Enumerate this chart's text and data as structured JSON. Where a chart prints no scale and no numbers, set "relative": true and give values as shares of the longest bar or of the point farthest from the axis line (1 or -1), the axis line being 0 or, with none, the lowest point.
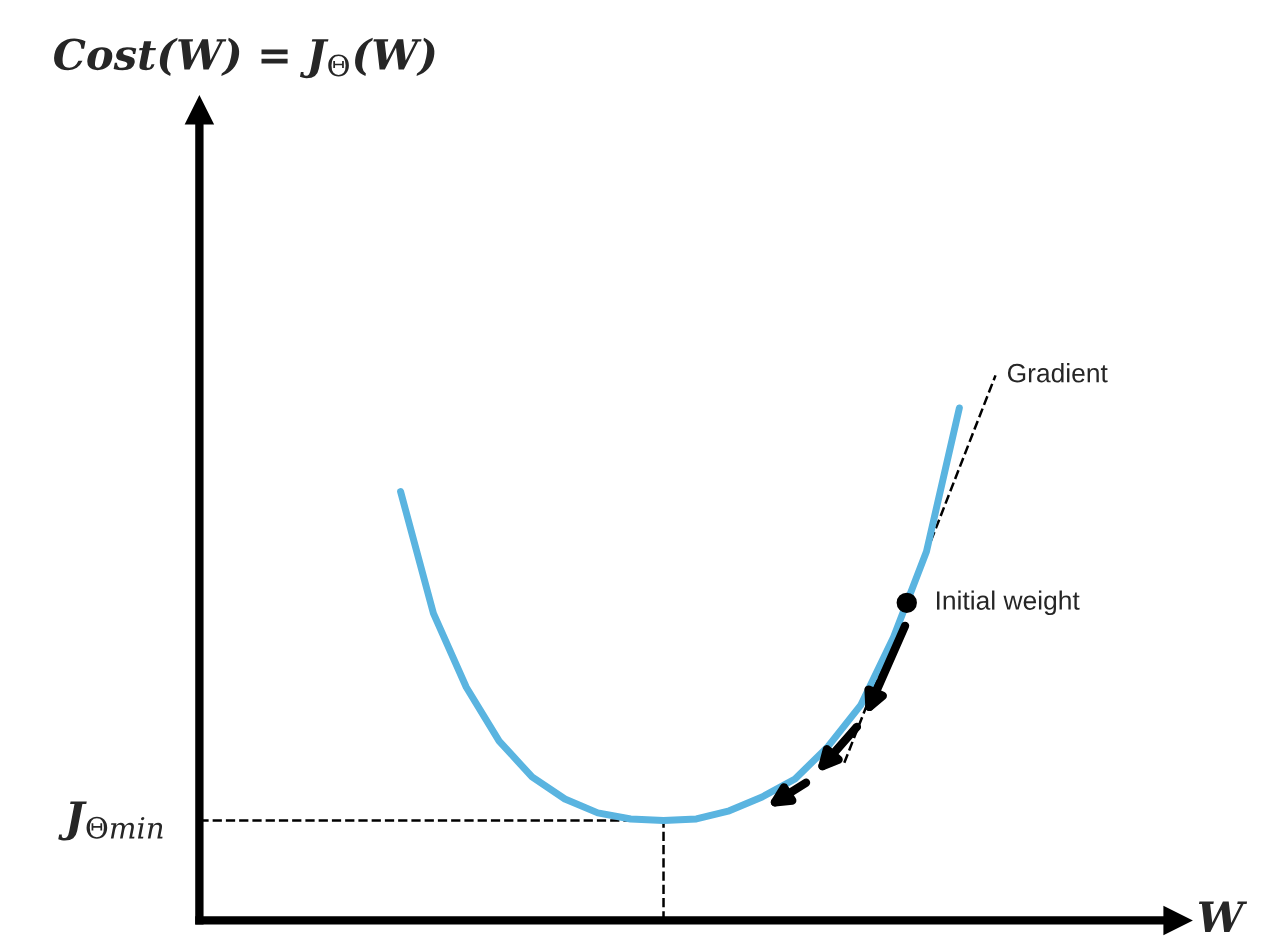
{
  "chart_data": {
    "type": "line",
    "relative": true,
    "categories": [
      null,
      null,
      null,
      null,
      null,
      null,
      null,
      null,
      null,
      null,
      null,
      null,
      null,
      null,
      null,
      null,
      null,
      null
    ],
    "series": [
      {
        "color": "#5ab4e0",
        "values": [
          0.837,
          0.599,
          0.455,
          0.35,
          0.28,
          0.237,
          0.21,
          0.198,
          0.195,
          0.198,
          0.214,
          0.241,
          0.276,
          0.339,
          0.42,
          0.553,
          0.72,
          1
        ]
      }
    ],
    "ref_lines": [
      {
        "axis": "y",
        "value": 0.195,
        "label": "J$_{Θmin}$",
        "line_style": "dashed",
        "color": "#000000"
      }
    ],
    "annotations": [
      "Gradient",
      "Initial weight",
      "Cost(W) = J$_{Θ}$(W)",
      "W"
    ]
  }
}
